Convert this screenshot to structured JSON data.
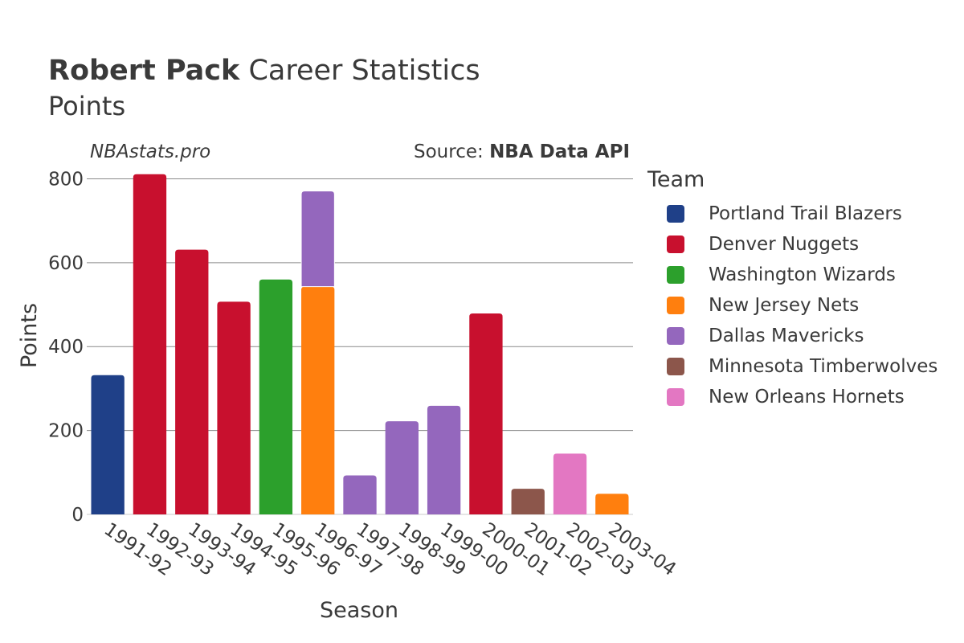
{
  "header": {
    "player": "Robert Pack",
    "title_rest": "Career Statistics",
    "subtitle": "Points",
    "brand": "NBAstats.pro",
    "source_prefix": "Source: ",
    "source_name": "NBA Data API"
  },
  "legend": {
    "title": "Team",
    "items": [
      {
        "label": "Portland Trail Blazers",
        "color": "#1f4088"
      },
      {
        "label": "Denver Nuggets",
        "color": "#c8102e"
      },
      {
        "label": "Washington Wizards",
        "color": "#2ca02c"
      },
      {
        "label": "New Jersey Nets",
        "color": "#ff7f0e"
      },
      {
        "label": "Dallas Mavericks",
        "color": "#9467bd"
      },
      {
        "label": "Minnesota Timberwolves",
        "color": "#8c564b"
      },
      {
        "label": "New Orleans Hornets",
        "color": "#e377c2"
      }
    ]
  },
  "chart_data": {
    "type": "bar",
    "stacked": true,
    "xlabel": "Season",
    "ylabel": "Points",
    "ylim": [
      0,
      820
    ],
    "yticks": [
      0,
      200,
      400,
      600,
      800
    ],
    "grid": true,
    "legend_position": "right",
    "categories": [
      "1991-92",
      "1992-93",
      "1993-94",
      "1994-95",
      "1995-96",
      "1996-97",
      "1997-98",
      "1998-99",
      "1999-00",
      "2000-01",
      "2001-02",
      "2002-03",
      "2003-04"
    ],
    "series": [
      {
        "name": "Portland Trail Blazers",
        "color": "#1f4088",
        "values": [
          332,
          0,
          0,
          0,
          0,
          0,
          0,
          0,
          0,
          0,
          0,
          0,
          0
        ]
      },
      {
        "name": "Denver Nuggets",
        "color": "#c8102e",
        "values": [
          0,
          811,
          631,
          507,
          0,
          0,
          0,
          0,
          0,
          479,
          0,
          0,
          0
        ]
      },
      {
        "name": "Washington Wizards",
        "color": "#2ca02c",
        "values": [
          0,
          0,
          0,
          0,
          560,
          0,
          0,
          0,
          0,
          0,
          0,
          0,
          0
        ]
      },
      {
        "name": "New Jersey Nets",
        "color": "#ff7f0e",
        "values": [
          0,
          0,
          0,
          0,
          0,
          543,
          0,
          0,
          0,
          0,
          0,
          0,
          49
        ]
      },
      {
        "name": "Dallas Mavericks",
        "color": "#9467bd",
        "values": [
          0,
          0,
          0,
          0,
          0,
          228,
          93,
          222,
          259,
          0,
          0,
          0,
          0
        ]
      },
      {
        "name": "Minnesota Timberwolves",
        "color": "#8c564b",
        "values": [
          0,
          0,
          0,
          0,
          0,
          0,
          0,
          0,
          0,
          0,
          61,
          0,
          0
        ]
      },
      {
        "name": "New Orleans Hornets",
        "color": "#e377c2",
        "values": [
          0,
          0,
          0,
          0,
          0,
          0,
          0,
          0,
          0,
          0,
          0,
          145,
          0
        ]
      }
    ]
  }
}
